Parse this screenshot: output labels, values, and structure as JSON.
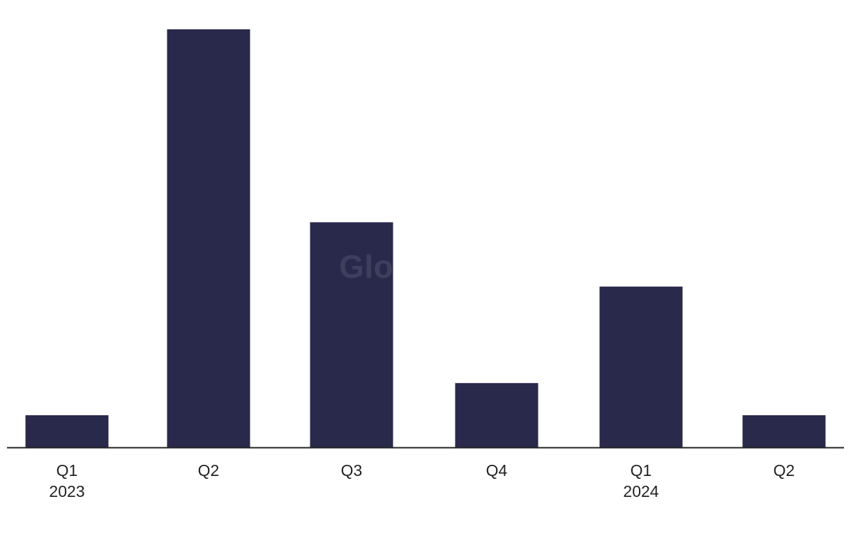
{
  "chart_data": {
    "type": "bar",
    "title": "",
    "xlabel": "",
    "ylabel": "",
    "categories": [
      "Q1 2023",
      "Q2",
      "Q3",
      "Q4",
      "Q1 2024",
      "Q2"
    ],
    "tick_labels": [
      {
        "quarter": "Q1",
        "year": "2023"
      },
      {
        "quarter": "Q2",
        "year": ""
      },
      {
        "quarter": "Q3",
        "year": ""
      },
      {
        "quarter": "Q4",
        "year": ""
      },
      {
        "quarter": "Q1",
        "year": "2024"
      },
      {
        "quarter": "Q2",
        "year": ""
      }
    ],
    "values": [
      1,
      13,
      7,
      2,
      5,
      1
    ],
    "ylim": [
      0,
      13
    ],
    "grid": false,
    "legend": "none",
    "bar_color": "#29294b",
    "axis_color": "#222222"
  },
  "watermark": {
    "text": "GlobalData"
  }
}
